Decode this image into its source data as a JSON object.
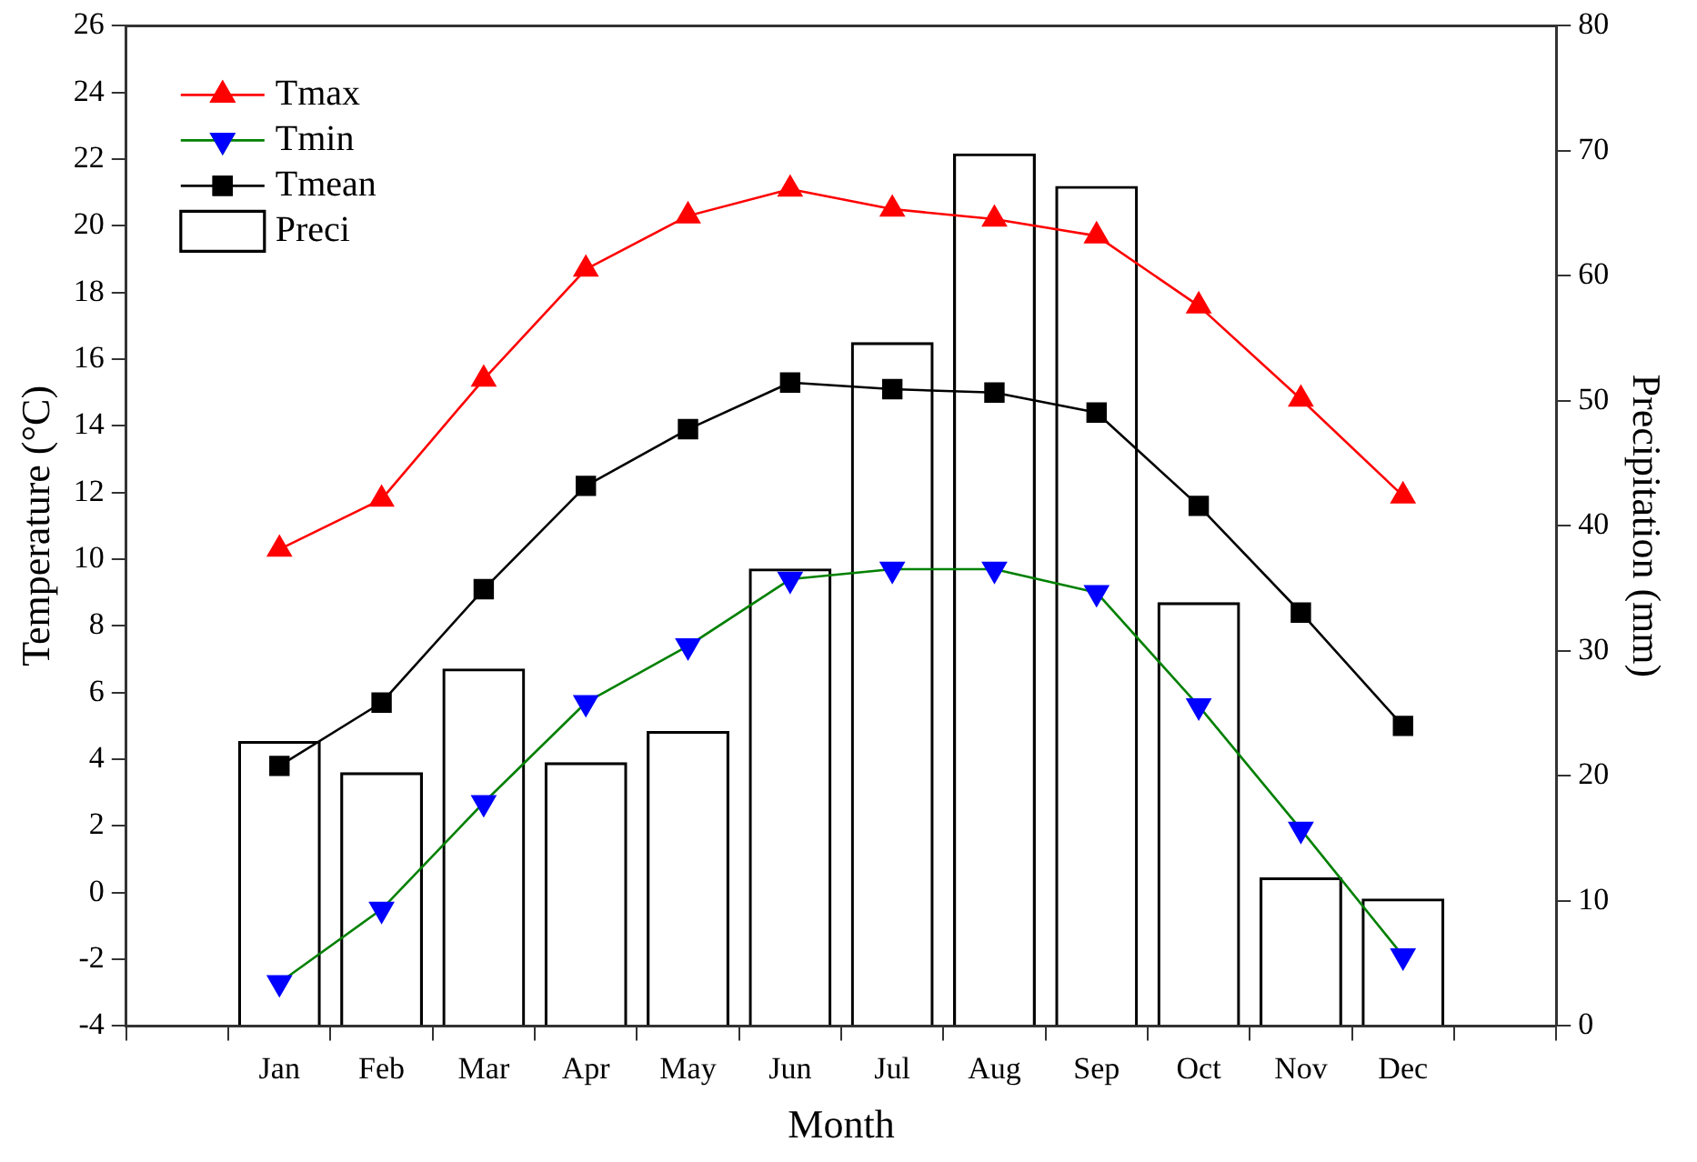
{
  "chart_data": {
    "type": "line",
    "xlabel": "Month",
    "ylabel": "Temperature (°C)",
    "y2label": "Precipitation (mm)",
    "categories": [
      "Jan",
      "Feb",
      "Mar",
      "Apr",
      "May",
      "Jun",
      "Jul",
      "Aug",
      "Sep",
      "Oct",
      "Nov",
      "Dec"
    ],
    "series": [
      {
        "name": "Tmax",
        "color": "#ff0000",
        "marker": "triangle",
        "values": [
          10.3,
          11.8,
          15.4,
          18.7,
          20.3,
          21.1,
          20.5,
          20.2,
          19.7,
          17.6,
          14.8,
          11.9
        ]
      },
      {
        "name": "Tmin",
        "color": "#008000",
        "colors": [
          "#0000ff",
          "#0000ff",
          "#0000ff",
          "#0000ff",
          "#0000ff",
          "#0000ff",
          "#0000ff",
          "#0000ff",
          "#0000ff",
          "#0000ff",
          "#0000ff",
          "#0000ff"
        ],
        "marker": "triangle-down",
        "values": [
          -2.7,
          -0.5,
          2.7,
          5.7,
          7.4,
          9.4,
          9.7,
          9.7,
          9.0,
          5.6,
          1.9,
          -1.9
        ]
      },
      {
        "name": "Tmean",
        "color": "#000000",
        "marker": "square",
        "values": [
          3.8,
          5.7,
          9.1,
          12.2,
          13.9,
          15.3,
          15.1,
          15.0,
          14.4,
          11.6,
          8.4,
          5.0
        ]
      },
      {
        "name": "Preci",
        "type": "bar",
        "axis": "y2",
        "color": "#000000",
        "values": [
          22.8,
          20.3,
          28.6,
          21.1,
          23.6,
          36.6,
          54.7,
          69.8,
          67.2,
          33.9,
          11.9,
          10.2
        ]
      }
    ],
    "ylim": [
      -4,
      26
    ],
    "yticks": [
      -4,
      -2,
      0,
      2,
      4,
      6,
      8,
      10,
      12,
      14,
      16,
      18,
      20,
      22,
      24,
      26
    ],
    "y2lim": [
      0,
      80
    ],
    "y2ticks": [
      0,
      10,
      20,
      30,
      40,
      50,
      60,
      70,
      80
    ],
    "grid": false,
    "legend": "top left"
  }
}
